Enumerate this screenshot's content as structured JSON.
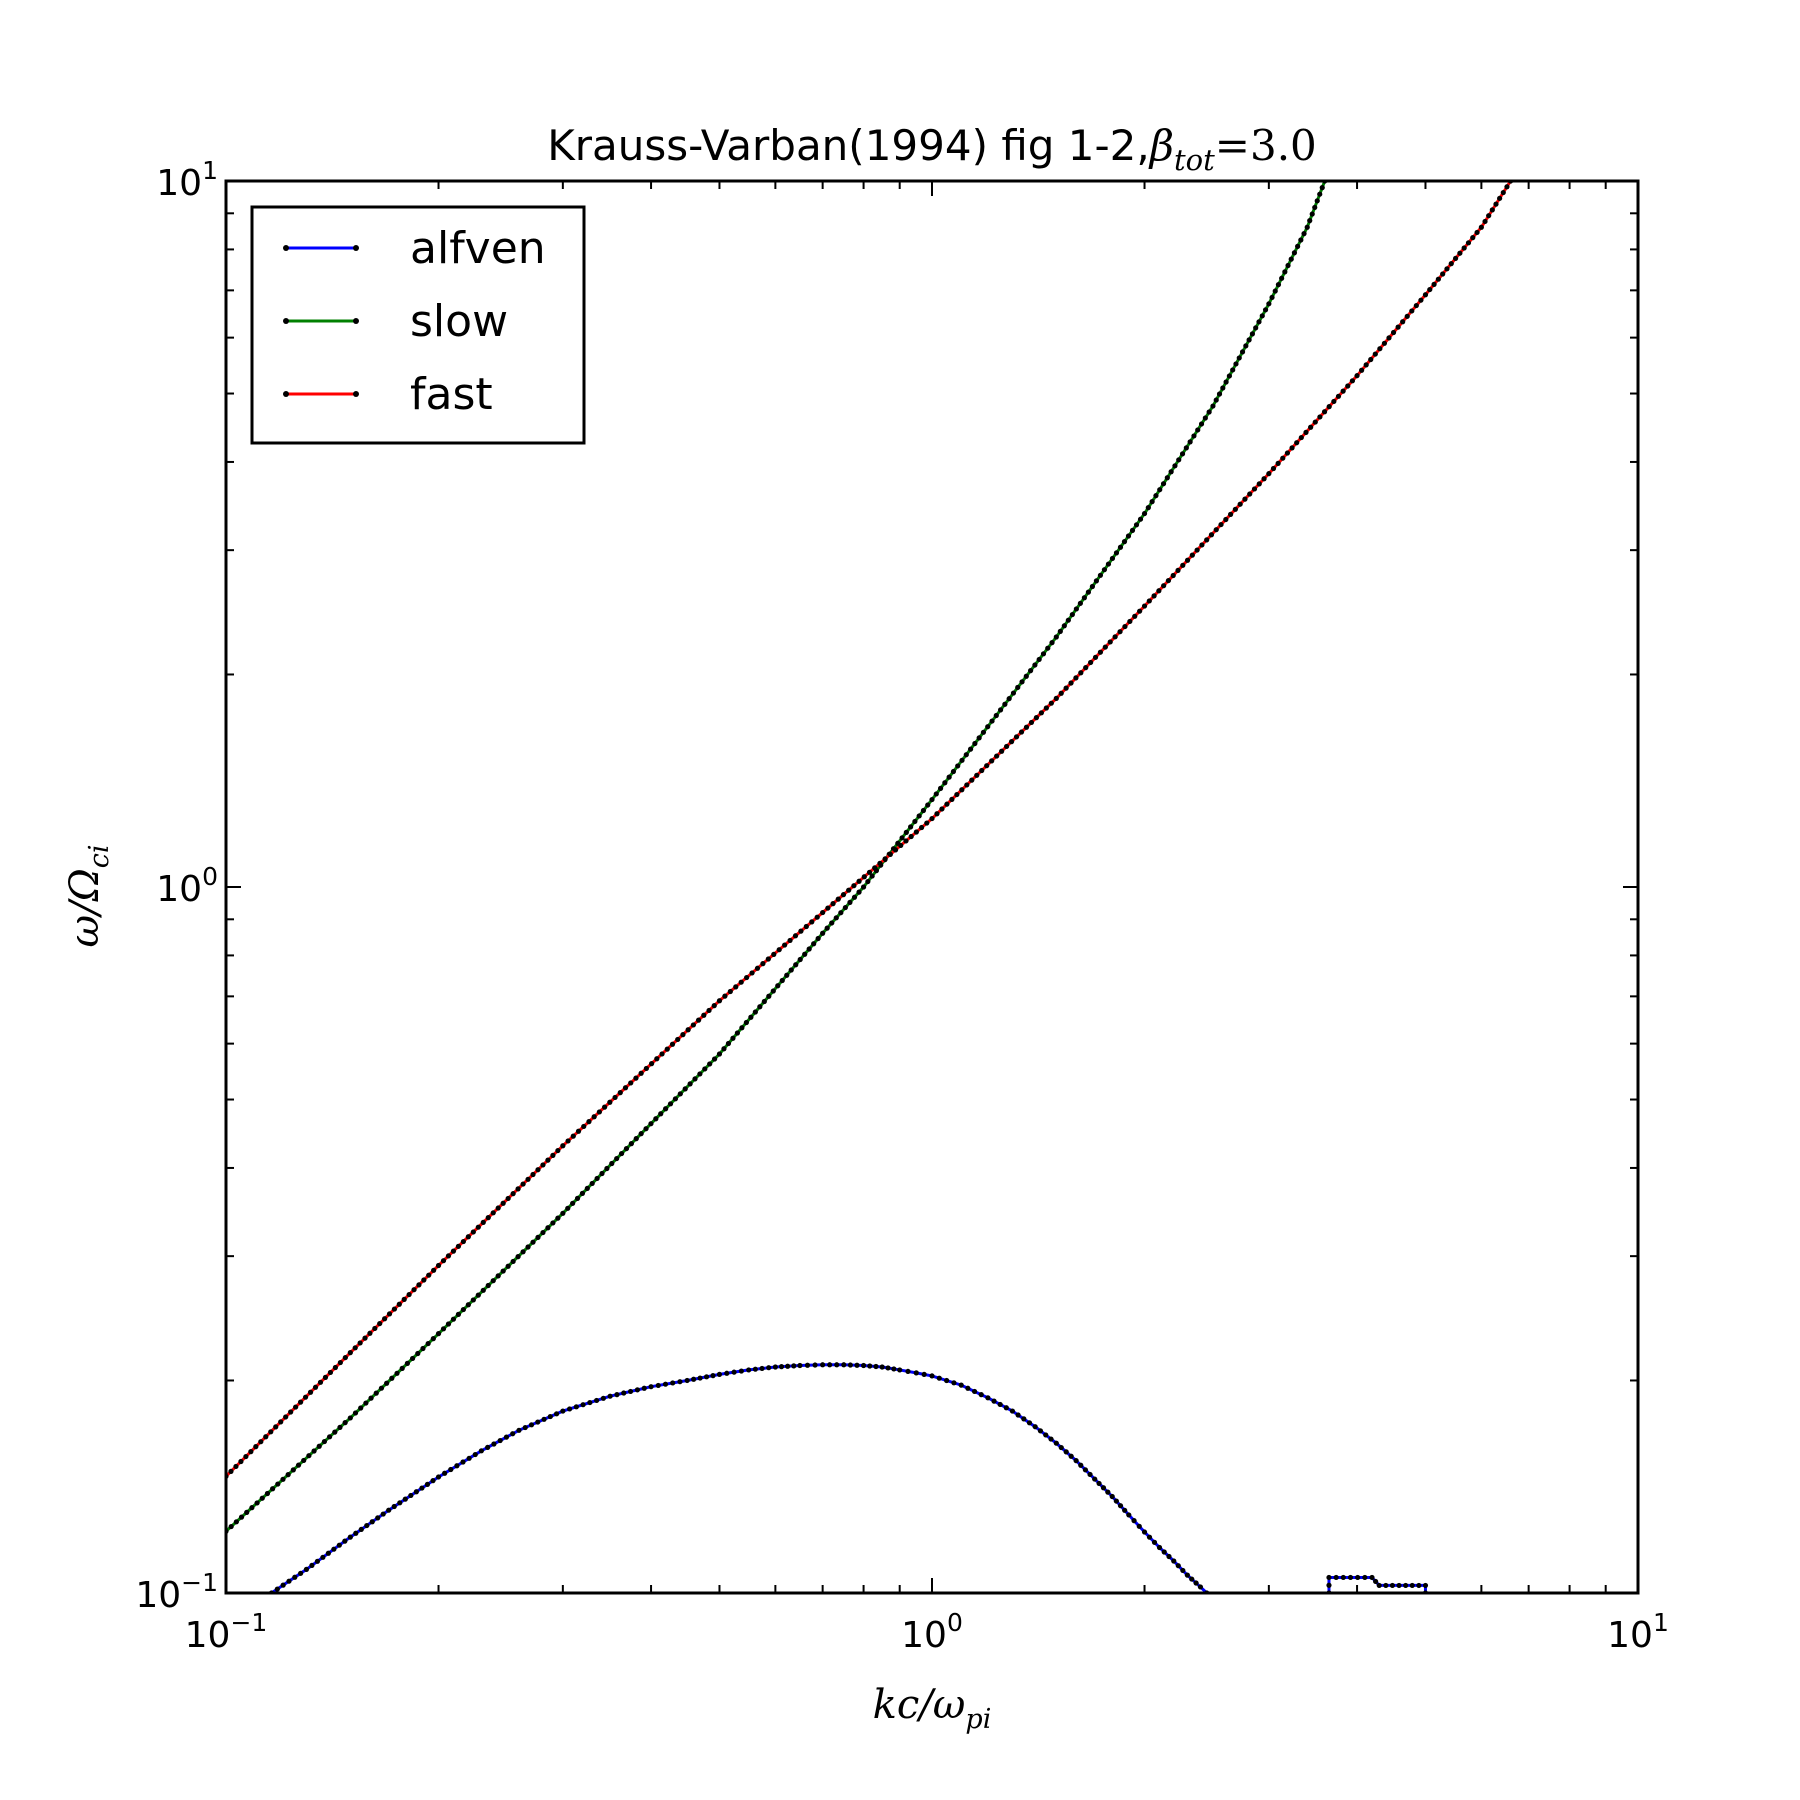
{
  "chart_data": {
    "type": "line",
    "title": "Krauss-Varban(1994) fig 1-2,",
    "title_math": {
      "base": "β",
      "sub": "tot",
      "rest": "=3.0"
    },
    "xlabel": {
      "base": "kc/ω",
      "sub": "pi"
    },
    "ylabel": {
      "base": "ω/Ω",
      "sub": "ci"
    },
    "xscale": "log",
    "yscale": "log",
    "xlim": [
      0.1,
      10
    ],
    "ylim": [
      0.1,
      10
    ],
    "x_major_ticks": [
      {
        "value": 0.1,
        "base": "10",
        "exp": "−1"
      },
      {
        "value": 1,
        "base": "10",
        "exp": "0"
      },
      {
        "value": 10,
        "base": "10",
        "exp": "1"
      }
    ],
    "y_major_ticks": [
      {
        "value": 0.1,
        "base": "10",
        "exp": "−1"
      },
      {
        "value": 1,
        "base": "10",
        "exp": "0"
      },
      {
        "value": 10,
        "base": "10",
        "exp": "1"
      }
    ],
    "grid": false,
    "legend_position": "top-left",
    "series": [
      {
        "name": "alfven",
        "color": "#0000ff",
        "marker": "dot",
        "points": [
          [
            0.116,
            0.1
          ],
          [
            0.13,
            0.108
          ],
          [
            0.15,
            0.12
          ],
          [
            0.17,
            0.131
          ],
          [
            0.2,
            0.146
          ],
          [
            0.23,
            0.159
          ],
          [
            0.26,
            0.17
          ],
          [
            0.3,
            0.181
          ],
          [
            0.35,
            0.19
          ],
          [
            0.4,
            0.196
          ],
          [
            0.45,
            0.2
          ],
          [
            0.5,
            0.204
          ],
          [
            0.55,
            0.207
          ],
          [
            0.6,
            0.209
          ],
          [
            0.65,
            0.21
          ],
          [
            0.7,
            0.2105
          ],
          [
            0.75,
            0.2105
          ],
          [
            0.8,
            0.21
          ],
          [
            0.85,
            0.209
          ],
          [
            0.9,
            0.207
          ],
          [
            0.95,
            0.205
          ],
          [
            1.0,
            0.203
          ],
          [
            1.1,
            0.197
          ],
          [
            1.2,
            0.189
          ],
          [
            1.3,
            0.181
          ],
          [
            1.4,
            0.172
          ],
          [
            1.5,
            0.163
          ],
          [
            1.6,
            0.154
          ],
          [
            1.7,
            0.145
          ],
          [
            1.8,
            0.137
          ],
          [
            1.9,
            0.129
          ],
          [
            2.0,
            0.122
          ],
          [
            2.1,
            0.116
          ],
          [
            2.2,
            0.111
          ],
          [
            2.3,
            0.106
          ],
          [
            2.4,
            0.102
          ],
          [
            2.45,
            0.1
          ]
        ]
      },
      {
        "name": "slow",
        "color": "#008000",
        "marker": "dot",
        "points": [
          [
            0.1,
            0.1223
          ],
          [
            0.15,
            0.177
          ],
          [
            0.2,
            0.233
          ],
          [
            0.3,
            0.345
          ],
          [
            0.5,
            0.58
          ],
          [
            0.7,
            0.86
          ],
          [
            0.8,
            1.0
          ],
          [
            1.0,
            1.33
          ],
          [
            1.5,
            2.26
          ],
          [
            2.0,
            3.38
          ],
          [
            2.5,
            4.8
          ],
          [
            3.0,
            6.7
          ],
          [
            3.4,
            8.6
          ],
          [
            3.6,
            10.0
          ]
        ]
      },
      {
        "name": "fast",
        "color": "#ff0000",
        "marker": "dot",
        "points": [
          [
            0.1,
            0.1463
          ],
          [
            0.15,
            0.219
          ],
          [
            0.2,
            0.291
          ],
          [
            0.3,
            0.43
          ],
          [
            0.5,
            0.69
          ],
          [
            0.7,
            0.92
          ],
          [
            1.0,
            1.25
          ],
          [
            1.5,
            1.85
          ],
          [
            2.0,
            2.5
          ],
          [
            3.0,
            3.85
          ],
          [
            4.0,
            5.3
          ],
          [
            5.0,
            6.9
          ],
          [
            6.0,
            8.6
          ],
          [
            6.6,
            10.0
          ]
        ]
      },
      {
        "name": "",
        "color": "#0000ff",
        "marker": "dot",
        "points": [
          [
            3.65,
            0.1
          ],
          [
            3.65,
            0.1052
          ],
          [
            4.2,
            0.1052
          ],
          [
            4.3,
            0.1025
          ],
          [
            5.0,
            0.1025
          ],
          [
            5.0,
            0.1
          ]
        ]
      }
    ]
  }
}
